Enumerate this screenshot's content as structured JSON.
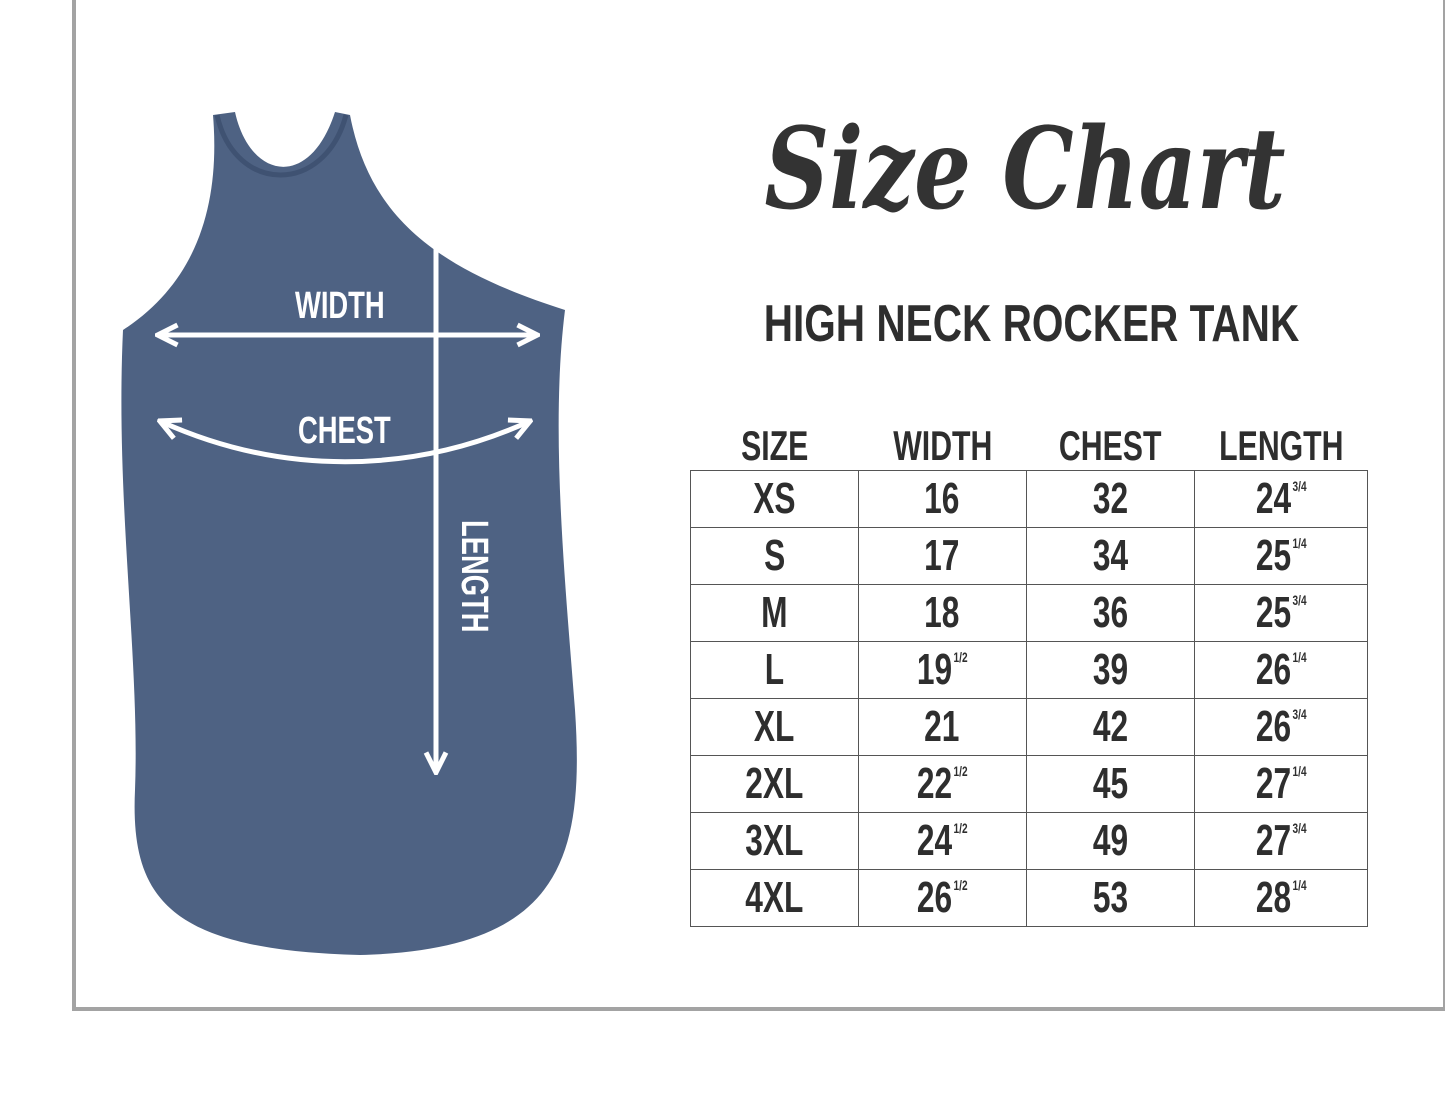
{
  "title": "Size Chart",
  "subtitle": "HIGH NECK ROCKER TANK",
  "garment": {
    "color": "#4e6283",
    "labels": {
      "width": "WIDTH",
      "chest": "CHEST",
      "length": "LENGTH"
    }
  },
  "table": {
    "headers": [
      "SIZE",
      "WIDTH",
      "CHEST",
      "LENGTH"
    ],
    "rows": [
      {
        "size": "XS",
        "width": "16",
        "width_frac": "",
        "chest": "32",
        "length": "24",
        "length_frac": "3/4"
      },
      {
        "size": "S",
        "width": "17",
        "width_frac": "",
        "chest": "34",
        "length": "25",
        "length_frac": "1/4"
      },
      {
        "size": "M",
        "width": "18",
        "width_frac": "",
        "chest": "36",
        "length": "25",
        "length_frac": "3/4"
      },
      {
        "size": "L",
        "width": "19",
        "width_frac": "1/2",
        "chest": "39",
        "length": "26",
        "length_frac": "1/4"
      },
      {
        "size": "XL",
        "width": "21",
        "width_frac": "",
        "chest": "42",
        "length": "26",
        "length_frac": "3/4"
      },
      {
        "size": "2XL",
        "width": "22",
        "width_frac": "1/2",
        "chest": "45",
        "length": "27",
        "length_frac": "1/4"
      },
      {
        "size": "3XL",
        "width": "24",
        "width_frac": "1/2",
        "chest": "49",
        "length": "27",
        "length_frac": "3/4"
      },
      {
        "size": "4XL",
        "width": "26",
        "width_frac": "1/2",
        "chest": "53",
        "length": "28",
        "length_frac": "1/4"
      }
    ]
  }
}
